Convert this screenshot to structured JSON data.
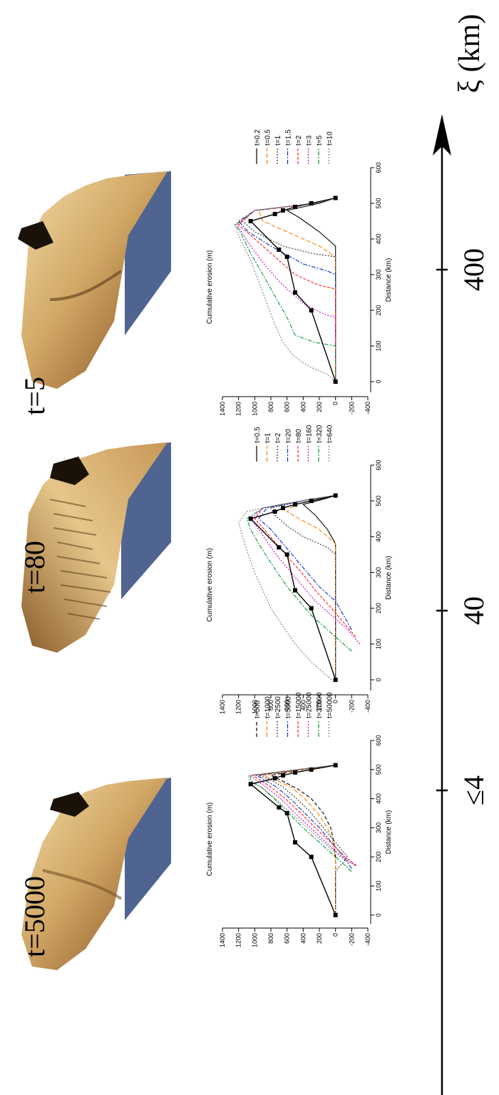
{
  "figure": {
    "axis_label": "ξ (km)",
    "axis_ticks": [
      "≤4",
      "40",
      "400"
    ]
  },
  "panels": [
    {
      "time_label": "t=5000"
    },
    {
      "time_label": "t=80"
    },
    {
      "time_label": "t=5"
    }
  ],
  "colors": {
    "sea": "#4f6490",
    "terrain_light": "#e8c98c",
    "terrain_mid": "#b88a4e",
    "terrain_dark": "#5a3a18",
    "profile_black": "#000000"
  },
  "chart_data": [
    {
      "type": "line",
      "xlabel": "Distance (km)",
      "ylabel": "Cumulative erosion (m)",
      "xlim": [
        -30,
        600
      ],
      "ylim": [
        -400,
        1400
      ],
      "xticks": [
        0,
        100,
        200,
        300,
        400,
        500,
        600
      ],
      "yticks": [
        -400,
        -200,
        0,
        200,
        400,
        600,
        800,
        1000,
        1200,
        1400
      ],
      "legend": "right",
      "series": [
        {
          "name": "t=500",
          "color": "#000000",
          "dash": "5,3",
          "x": [
            0,
            100,
            200,
            250,
            300,
            350,
            400,
            430,
            460,
            480,
            500,
            515
          ],
          "y": [
            0,
            0,
            0,
            20,
            60,
            150,
            300,
            450,
            650,
            800,
            400,
            0
          ]
        },
        {
          "name": "t=1000",
          "color": "#ff8000",
          "dash": "6,3",
          "x": [
            0,
            100,
            180,
            250,
            300,
            350,
            400,
            440,
            465,
            480,
            500,
            515
          ],
          "y": [
            0,
            0,
            0,
            30,
            100,
            220,
            380,
            550,
            750,
            900,
            400,
            0
          ]
        },
        {
          "name": "t=2500",
          "color": "#333333",
          "dash": "2,2",
          "x": [
            0,
            150,
            200,
            250,
            300,
            350,
            400,
            440,
            465,
            480,
            500,
            515
          ],
          "y": [
            0,
            0,
            -150,
            0,
            150,
            300,
            480,
            650,
            800,
            950,
            450,
            0
          ]
        },
        {
          "name": "t=5000",
          "color": "#0033cc",
          "dash": "6,2,2,2",
          "x": [
            160,
            200,
            250,
            300,
            350,
            400,
            440,
            465,
            480,
            500,
            515
          ],
          "y": [
            -200,
            -100,
            50,
            200,
            380,
            560,
            730,
            880,
            980,
            450,
            0
          ]
        },
        {
          "name": "t=15000",
          "color": "#ff2020",
          "dash": "4,2",
          "x": [
            170,
            200,
            250,
            300,
            350,
            400,
            440,
            465,
            480,
            500,
            515
          ],
          "y": [
            -260,
            -120,
            60,
            250,
            430,
            620,
            800,
            940,
            1020,
            460,
            0
          ]
        },
        {
          "name": "t=25000",
          "color": "#cc00cc",
          "dash": "2,2",
          "x": [
            170,
            200,
            250,
            300,
            350,
            400,
            440,
            465,
            480,
            500,
            515
          ],
          "y": [
            -250,
            -80,
            120,
            310,
            500,
            680,
            860,
            990,
            1050,
            460,
            0
          ]
        },
        {
          "name": "t=37500",
          "color": "#009933",
          "dash": "6,2,2,2",
          "x": [
            150,
            200,
            250,
            300,
            350,
            400,
            440,
            460,
            480,
            500,
            515
          ],
          "y": [
            -200,
            0,
            200,
            400,
            580,
            760,
            920,
            1040,
            1060,
            470,
            0
          ]
        },
        {
          "name": "t=50000",
          "color": "#808080",
          "dash": "2,2",
          "x": [
            170,
            200,
            250,
            300,
            350,
            400,
            440,
            455,
            480,
            500,
            515
          ],
          "y": [
            -240,
            -60,
            150,
            350,
            550,
            740,
            920,
            1060,
            1080,
            470,
            0
          ]
        },
        {
          "name": "",
          "color": "#000000",
          "dash": "",
          "markers": true,
          "x": [
            0,
            200,
            250,
            350,
            370,
            450,
            470,
            480,
            490,
            500,
            515
          ],
          "y": [
            0,
            300,
            500,
            600,
            700,
            1050,
            750,
            650,
            500,
            300,
            0
          ]
        }
      ]
    },
    {
      "type": "line",
      "xlabel": "Distance (km)",
      "ylabel": "Cumulative erosion (m)",
      "xlim": [
        -30,
        600
      ],
      "ylim": [
        -400,
        1400
      ],
      "xticks": [
        0,
        100,
        200,
        300,
        400,
        500,
        600
      ],
      "yticks": [
        -400,
        -200,
        0,
        200,
        400,
        600,
        800,
        1000,
        1200,
        1400
      ],
      "legend": "right",
      "series": [
        {
          "name": "t=0.5",
          "color": "#000000",
          "dash": "",
          "x": [
            0,
            100,
            200,
            300,
            380,
            420,
            460,
            490,
            505,
            515
          ],
          "y": [
            0,
            0,
            0,
            0,
            0,
            100,
            250,
            400,
            150,
            0
          ]
        },
        {
          "name": "t=1",
          "color": "#ff8000",
          "dash": "6,3",
          "x": [
            0,
            100,
            200,
            300,
            380,
            420,
            450,
            470,
            490,
            505,
            515
          ],
          "y": [
            0,
            0,
            0,
            0,
            0,
            200,
            450,
            600,
            500,
            200,
            0
          ]
        },
        {
          "name": "t=2",
          "color": "#333333",
          "dash": "2,2",
          "x": [
            0,
            100,
            200,
            300,
            350,
            370,
            400,
            430,
            460,
            480,
            505,
            515
          ],
          "y": [
            0,
            0,
            0,
            0,
            0,
            100,
            400,
            600,
            750,
            800,
            300,
            0
          ]
        },
        {
          "name": "t=20",
          "color": "#0033cc",
          "dash": "6,2,2,2",
          "x": [
            140,
            180,
            220,
            260,
            300,
            340,
            380,
            420,
            450,
            480,
            505,
            515
          ],
          "y": [
            -200,
            -100,
            0,
            200,
            350,
            500,
            650,
            800,
            950,
            850,
            300,
            0
          ]
        },
        {
          "name": "t=80",
          "color": "#ff2020",
          "dash": "4,2",
          "x": [
            120,
            160,
            200,
            250,
            300,
            340,
            380,
            420,
            450,
            480,
            505,
            515
          ],
          "y": [
            -250,
            -100,
            50,
            250,
            420,
            580,
            730,
            880,
            1000,
            900,
            300,
            0
          ]
        },
        {
          "name": "t=160",
          "color": "#cc00cc",
          "dash": "2,2",
          "x": [
            100,
            140,
            180,
            220,
            260,
            300,
            340,
            380,
            420,
            450,
            480,
            505,
            515
          ],
          "y": [
            -300,
            -150,
            50,
            250,
            400,
            550,
            700,
            830,
            950,
            1050,
            900,
            300,
            0
          ]
        },
        {
          "name": "t=320",
          "color": "#009933",
          "dash": "6,2,2,2",
          "x": [
            80,
            100,
            140,
            180,
            220,
            260,
            300,
            340,
            380,
            420,
            450,
            480,
            505,
            515
          ],
          "y": [
            -200,
            -100,
            100,
            300,
            450,
            600,
            720,
            840,
            950,
            1050,
            1100,
            900,
            300,
            0
          ]
        },
        {
          "name": "t=640",
          "color": "#808080",
          "dash": "2,2",
          "x": [
            0,
            50,
            100,
            150,
            200,
            250,
            300,
            350,
            400,
            440,
            470,
            490,
            505,
            515
          ],
          "y": [
            50,
            300,
            500,
            650,
            800,
            900,
            1000,
            1080,
            1150,
            1200,
            1100,
            700,
            250,
            0
          ]
        },
        {
          "name": "",
          "color": "#000000",
          "dash": "",
          "markers": true,
          "x": [
            0,
            200,
            250,
            350,
            370,
            450,
            470,
            480,
            490,
            500,
            515
          ],
          "y": [
            0,
            300,
            500,
            600,
            700,
            1050,
            750,
            650,
            500,
            300,
            0
          ]
        }
      ]
    },
    {
      "type": "line",
      "xlabel": "Distance (km)",
      "ylabel": "Cumulative erosion (m)",
      "xlim": [
        -30,
        600
      ],
      "ylim": [
        -400,
        1400
      ],
      "xticks": [
        0,
        100,
        200,
        300,
        400,
        500,
        600
      ],
      "yticks": [
        -400,
        -200,
        0,
        200,
        400,
        600,
        800,
        1000,
        1200,
        1400
      ],
      "legend": "right",
      "series": [
        {
          "name": "t=0.2",
          "color": "#000000",
          "dash": "",
          "x": [
            0,
            100,
            200,
            300,
            380,
            420,
            460,
            480,
            500,
            515
          ],
          "y": [
            0,
            0,
            0,
            0,
            0,
            200,
            450,
            600,
            200,
            0
          ]
        },
        {
          "name": "t=0.5",
          "color": "#ff8000",
          "dash": "6,3",
          "x": [
            0,
            100,
            200,
            300,
            350,
            380,
            420,
            450,
            480,
            500,
            515
          ],
          "y": [
            0,
            0,
            0,
            0,
            0,
            200,
            600,
            900,
            950,
            250,
            0
          ]
        },
        {
          "name": "t=1",
          "color": "#333333",
          "dash": "2,2",
          "x": [
            0,
            100,
            200,
            300,
            350,
            360,
            380,
            420,
            450,
            480,
            500,
            515
          ],
          "y": [
            0,
            0,
            0,
            0,
            0,
            300,
            650,
            1000,
            1150,
            1000,
            250,
            0
          ]
        },
        {
          "name": "t=1.5",
          "color": "#0033cc",
          "dash": "6,2,2,2",
          "x": [
            0,
            100,
            200,
            300,
            310,
            330,
            380,
            420,
            450,
            480,
            500,
            515
          ],
          "y": [
            0,
            0,
            0,
            0,
            100,
            400,
            800,
            1080,
            1200,
            1000,
            250,
            0
          ]
        },
        {
          "name": "t=2",
          "color": "#ff2020",
          "dash": "4,2",
          "x": [
            0,
            100,
            200,
            260,
            270,
            300,
            350,
            400,
            440,
            480,
            500,
            515
          ],
          "y": [
            0,
            0,
            0,
            0,
            200,
            500,
            750,
            1000,
            1200,
            1000,
            250,
            0
          ]
        },
        {
          "name": "t=3",
          "color": "#cc00cc",
          "dash": "2,2",
          "x": [
            0,
            100,
            180,
            190,
            220,
            270,
            320,
            380,
            440,
            480,
            500,
            515
          ],
          "y": [
            0,
            0,
            0,
            150,
            400,
            650,
            850,
            1050,
            1220,
            1000,
            250,
            0
          ]
        },
        {
          "name": "t=5",
          "color": "#009933",
          "dash": "6,2,2,2",
          "x": [
            0,
            100,
            110,
            130,
            180,
            240,
            300,
            360,
            420,
            440,
            480,
            500,
            515
          ],
          "y": [
            0,
            0,
            250,
            500,
            600,
            750,
            900,
            1050,
            1180,
            1240,
            1000,
            250,
            0
          ]
        },
        {
          "name": "t=10",
          "color": "#808080",
          "dash": "2,2",
          "x": [
            0,
            20,
            40,
            60,
            80,
            110,
            160,
            220,
            280,
            340,
            400,
            440,
            480,
            500,
            515
          ],
          "y": [
            0,
            100,
            300,
            450,
            550,
            650,
            750,
            850,
            950,
            1050,
            1180,
            1250,
            1000,
            250,
            0
          ]
        },
        {
          "name": "",
          "color": "#000000",
          "dash": "",
          "markers": true,
          "x": [
            0,
            200,
            250,
            350,
            370,
            450,
            470,
            480,
            490,
            500,
            515
          ],
          "y": [
            0,
            300,
            500,
            600,
            700,
            1050,
            750,
            650,
            500,
            300,
            0
          ]
        }
      ]
    }
  ]
}
